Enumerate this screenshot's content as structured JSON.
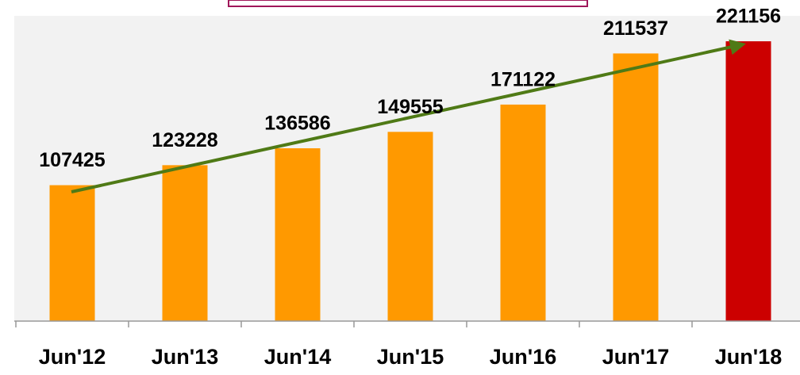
{
  "chart_data": {
    "type": "bar",
    "categories": [
      "Jun'12",
      "Jun'13",
      "Jun'14",
      "Jun'15",
      "Jun'16",
      "Jun'17",
      "Jun'18"
    ],
    "values": [
      107425,
      123228,
      136586,
      149555,
      171122,
      211537,
      221156
    ],
    "colors": [
      "#ff9900",
      "#ff9900",
      "#ff9900",
      "#ff9900",
      "#ff9900",
      "#ff9900",
      "#cc0000"
    ],
    "ylim": [
      0,
      240000
    ],
    "grid": false
  }
}
